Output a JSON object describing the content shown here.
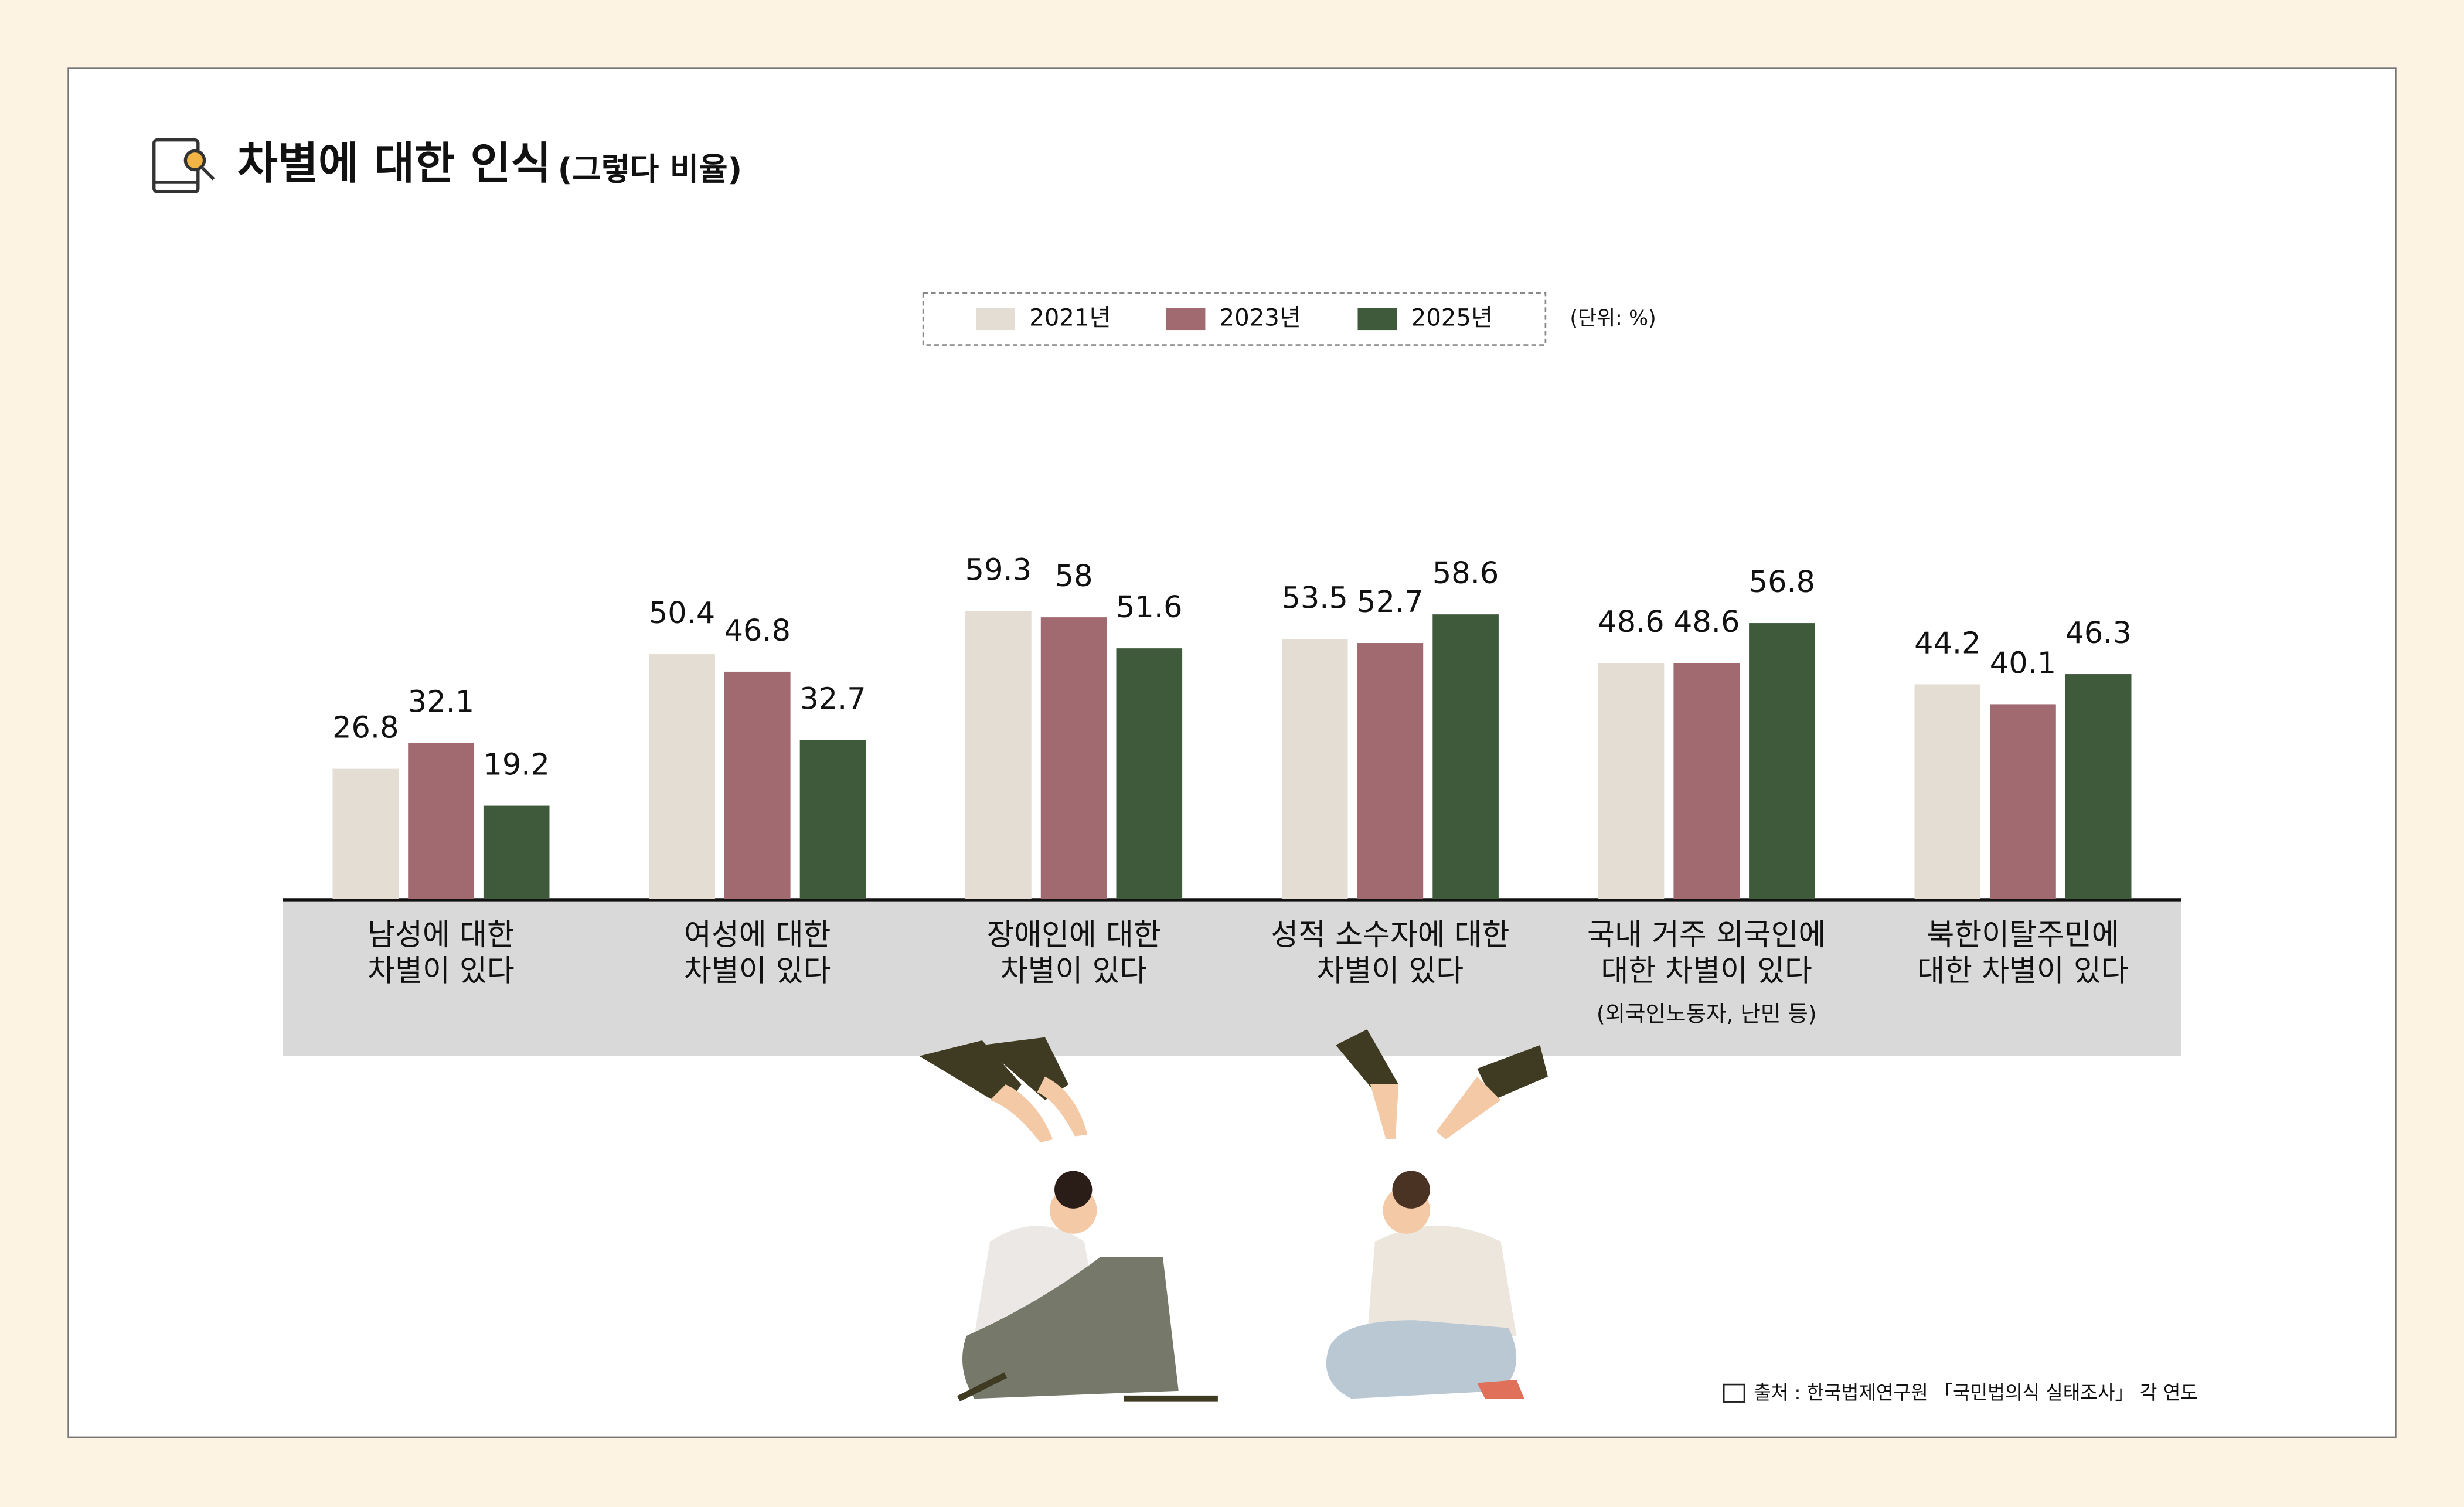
{
  "chart_data": {
    "type": "bar",
    "title": "차별에 대한  인식",
    "subtitle": "(그렇다 비율)",
    "unit": "(단위: %)",
    "categories": [
      [
        "남성에 대한",
        "차별이 있다"
      ],
      [
        "여성에 대한",
        "차별이 있다"
      ],
      [
        "장애인에 대한",
        "차별이 있다"
      ],
      [
        "성적 소수자에 대한",
        "차별이 있다"
      ],
      [
        "국내 거주 외국인에",
        "대한 차별이 있다"
      ],
      [
        "북한이탈주민에",
        "대한 차별이 있다"
      ]
    ],
    "annotations": [
      "(외국인노동자, 난민 등)"
    ],
    "series": [
      {
        "name": "2021년",
        "color": "#e3ddd3",
        "values": [
          26.8,
          50.4,
          59.3,
          53.5,
          48.6,
          44.2
        ]
      },
      {
        "name": "2023년",
        "color": "#a06a70",
        "values": [
          32.1,
          46.8,
          58.0,
          52.7,
          48.6,
          40.1
        ]
      },
      {
        "name": "2025년",
        "color": "#3e5a3b",
        "values": [
          19.2,
          32.7,
          51.6,
          58.6,
          56.8,
          46.3
        ]
      }
    ],
    "ylim": [
      0,
      100
    ],
    "source": "출처 : 한국법제연구원 「국민법의식 실태조사」 각 연도"
  }
}
